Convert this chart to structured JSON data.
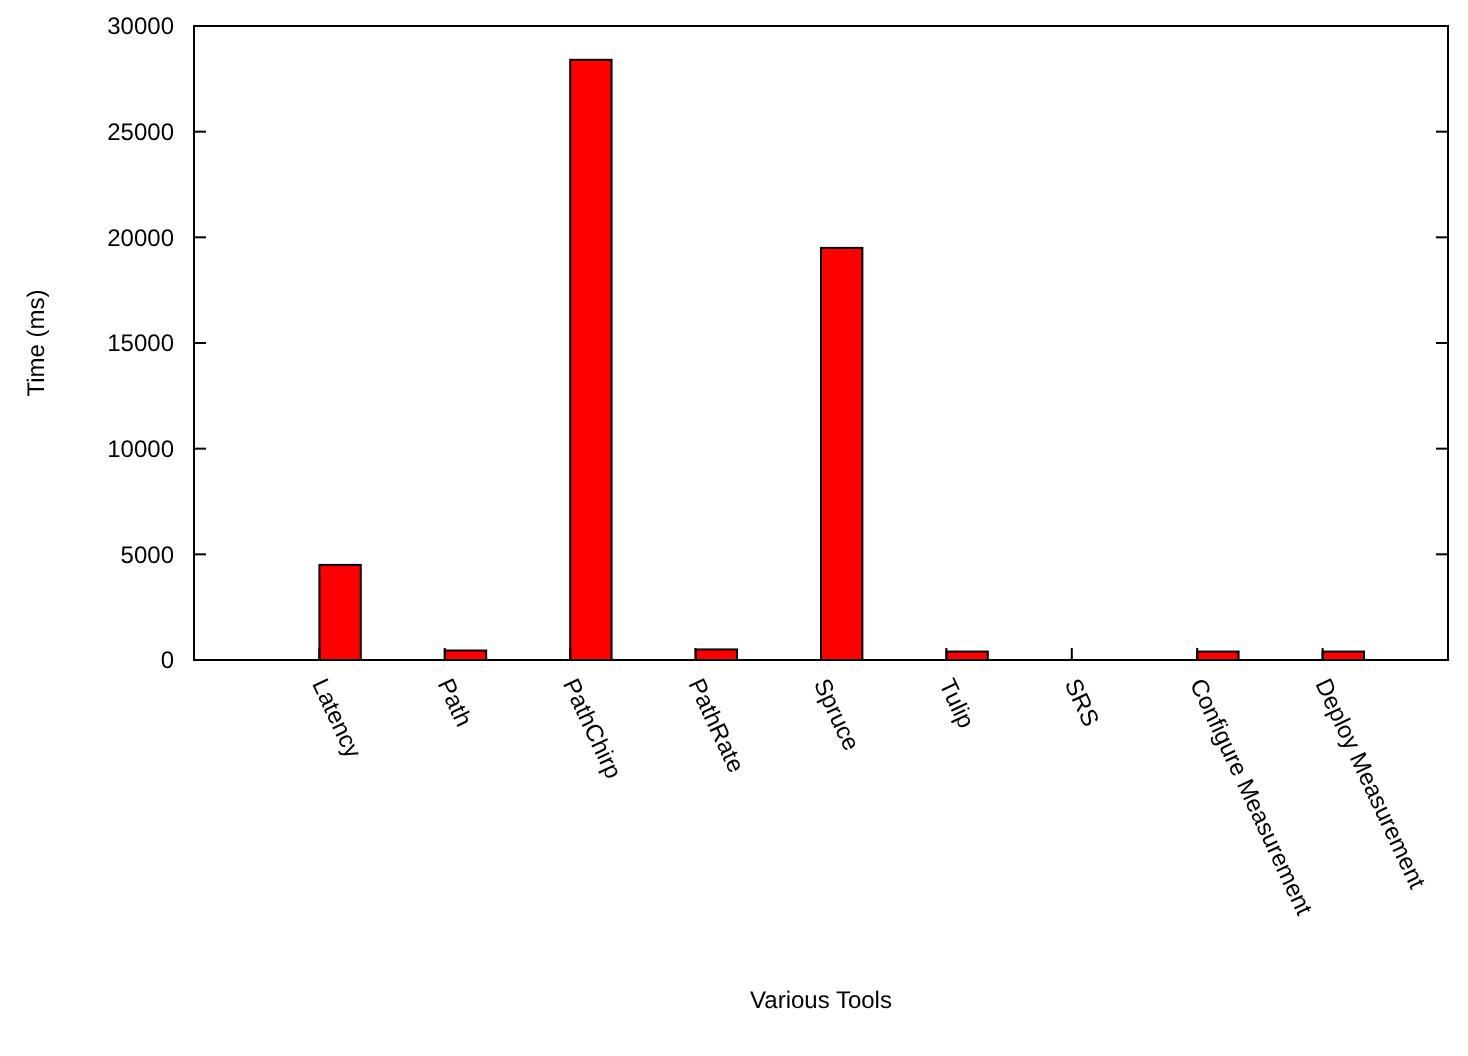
{
  "chart_data": {
    "type": "bar",
    "xlabel": "Various Tools",
    "ylabel": "Time (ms)",
    "categories": [
      "Latency",
      "Path",
      "PathChirp",
      "PathRate",
      "Spruce",
      "Tulip",
      "SRS",
      "Configure Measurement",
      "Deploy Measurement"
    ],
    "values": [
      4500,
      450,
      28400,
      500,
      19500,
      400,
      null,
      400,
      400
    ],
    "color": "#ff0000",
    "ylim": [
      0,
      30000
    ],
    "yticks": [
      0,
      5000,
      10000,
      15000,
      20000,
      25000,
      30000
    ],
    "grid": false
  }
}
